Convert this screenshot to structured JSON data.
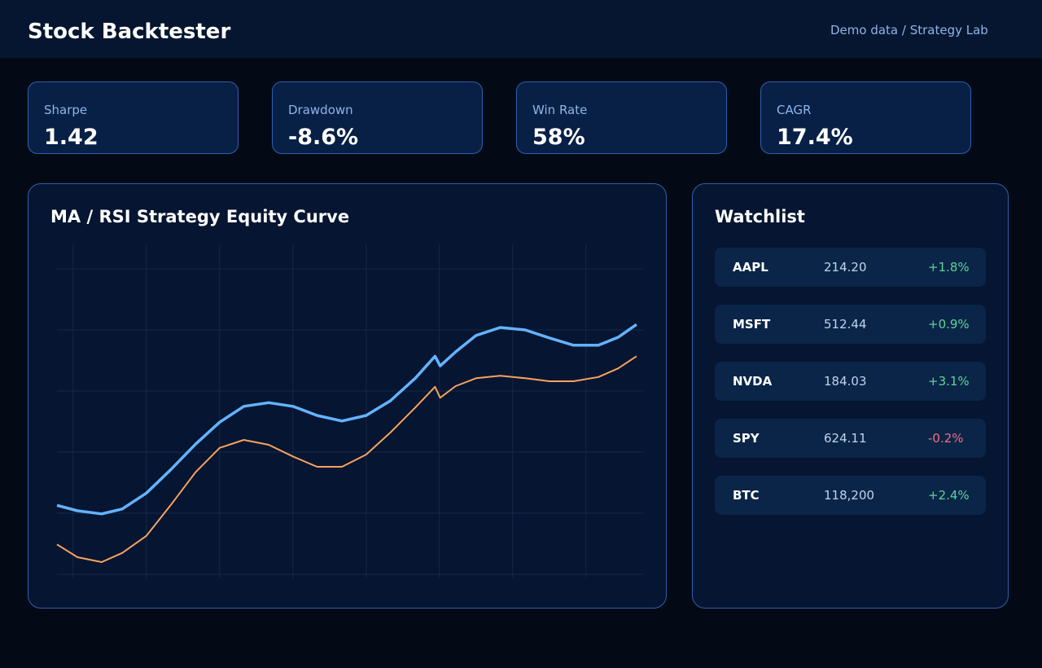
{
  "header": {
    "title": "Stock Backtester",
    "subtitle": "Demo data / Strategy Lab"
  },
  "metrics": [
    {
      "label": "Sharpe",
      "value": "1.42"
    },
    {
      "label": "Drawdown",
      "value": "-8.6%"
    },
    {
      "label": "Win Rate",
      "value": "58%"
    },
    {
      "label": "CAGR",
      "value": "17.4%"
    }
  ],
  "chart_data": {
    "type": "line",
    "title": "MA / RSI Strategy Equity Curve",
    "x": [
      -2.2,
      0.6,
      3.9,
      6.7,
      10,
      13.3,
      16.7,
      20,
      23.3,
      26.7,
      30,
      33.3,
      36.7,
      40,
      43.3,
      46.7,
      49.4,
      50.1,
      52.2,
      55,
      58.3,
      61.7,
      65,
      68.3,
      71.7,
      74.4,
      76.9
    ],
    "series": [
      {
        "color": "#63b3ff",
        "values": [
          1.13,
          1.04,
          0.99,
          1.07,
          1.33,
          1.71,
          2.13,
          2.49,
          2.75,
          2.81,
          2.75,
          2.6,
          2.51,
          2.6,
          2.84,
          3.21,
          3.57,
          3.41,
          3.64,
          3.91,
          4.04,
          4,
          3.87,
          3.75,
          3.75,
          3.88,
          4.09
        ]
      },
      {
        "color": "#f6a35f",
        "values": [
          0.49,
          0.28,
          0.2,
          0.35,
          0.63,
          1.13,
          1.67,
          2.07,
          2.2,
          2.12,
          1.93,
          1.76,
          1.76,
          1.96,
          2.32,
          2.73,
          3.07,
          2.89,
          3.08,
          3.21,
          3.25,
          3.21,
          3.16,
          3.16,
          3.23,
          3.37,
          3.57
        ]
      }
    ],
    "xlim": [
      -2.2,
      77.8
    ],
    "xticks": [
      0,
      10,
      20,
      30,
      40,
      50,
      60,
      70
    ],
    "ylim": [
      0,
      5
    ],
    "yticks": [
      0,
      1,
      2,
      3,
      4,
      5
    ],
    "grid": true
  },
  "watchlist": {
    "title": "Watchlist",
    "rows": [
      {
        "symbol": "AAPL",
        "price": "214.20",
        "change": "+1.8%"
      },
      {
        "symbol": "MSFT",
        "price": "512.44",
        "change": "+0.9%"
      },
      {
        "symbol": "NVDA",
        "price": "184.03",
        "change": "+3.1%"
      },
      {
        "symbol": "SPY",
        "price": "624.11",
        "change": "-0.2%"
      },
      {
        "symbol": "BTC",
        "price": "118,200",
        "change": "+2.4%"
      }
    ]
  }
}
